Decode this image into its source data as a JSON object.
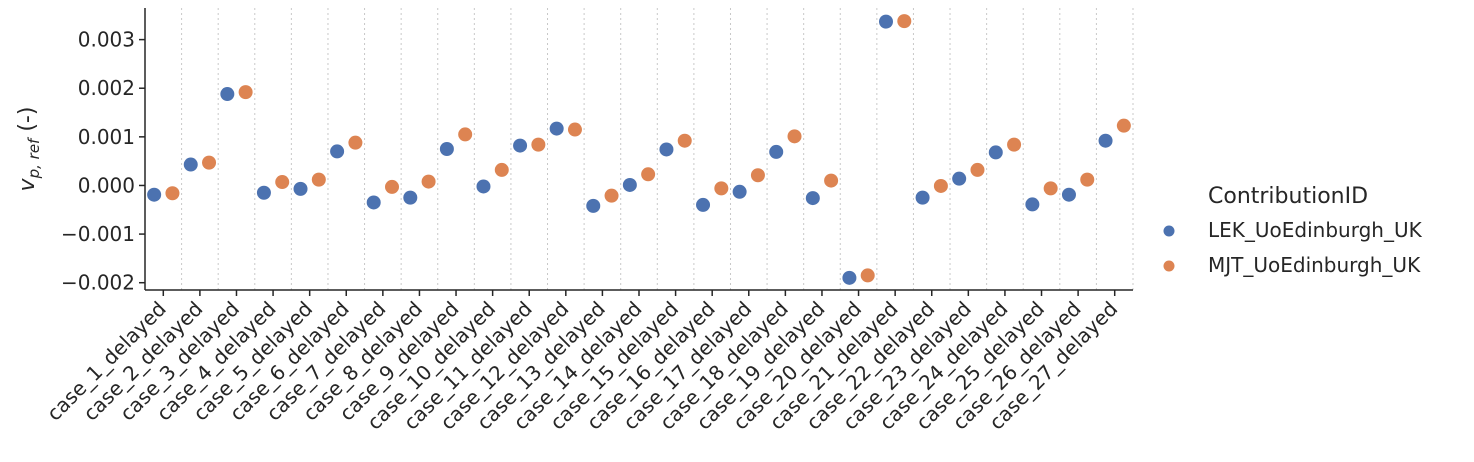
{
  "chart_data": {
    "type": "scatter",
    "ylabel_main": "v",
    "ylabel_sub": "p, ref",
    "ylabel_suffix": " (-)",
    "ylim": [
      -0.00215,
      0.00365
    ],
    "y_ticks": [
      -0.002,
      -0.001,
      0.0,
      0.001,
      0.002,
      0.003
    ],
    "y_tick_labels": [
      "−0.002",
      "−0.001",
      "0.000",
      "0.001",
      "0.002",
      "0.003"
    ],
    "grid": "vertical dotted lines between categories",
    "legend_placement": "right",
    "legend_title": "ContributionID",
    "categories": [
      "case_1_delayed",
      "case_2_delayed",
      "case_3_delayed",
      "case_4_delayed",
      "case_5_delayed",
      "case_6_delayed",
      "case_7_delayed",
      "case_8_delayed",
      "case_9_delayed",
      "case_10_delayed",
      "case_11_delayed",
      "case_12_delayed",
      "case_13_delayed",
      "case_14_delayed",
      "case_15_delayed",
      "case_16_delayed",
      "case_17_delayed",
      "case_18_delayed",
      "case_19_delayed",
      "case_20_delayed",
      "case_21_delayed",
      "case_22_delayed",
      "case_23_delayed",
      "case_24_delayed",
      "case_25_delayed",
      "case_26_delayed",
      "case_27_delayed"
    ],
    "series": [
      {
        "name": "LEK_UoEdinburgh_UK",
        "color": "#4c72b0",
        "values": [
          -0.00019,
          0.00043,
          0.00188,
          -0.00015,
          -7e-05,
          0.0007,
          -0.00035,
          -0.00025,
          0.00075,
          -2e-05,
          0.00082,
          0.00117,
          -0.00042,
          1e-05,
          0.00074,
          -0.0004,
          -0.00013,
          0.00069,
          -0.00026,
          -0.0019,
          0.00337,
          -0.00025,
          0.00014,
          0.00068,
          -0.00039,
          -0.00019,
          0.00092
        ]
      },
      {
        "name": "MJT_UoEdinburgh_UK",
        "color": "#dd8452",
        "values": [
          -0.00016,
          0.00047,
          0.00192,
          7e-05,
          0.00012,
          0.00088,
          -3e-05,
          8e-05,
          0.00105,
          0.00032,
          0.00084,
          0.00115,
          -0.00021,
          0.00023,
          0.00092,
          -6e-05,
          0.00021,
          0.00101,
          0.0001,
          -0.00185,
          0.00338,
          -1e-05,
          0.00032,
          0.00084,
          -6e-05,
          0.00012,
          0.00123
        ]
      }
    ]
  }
}
